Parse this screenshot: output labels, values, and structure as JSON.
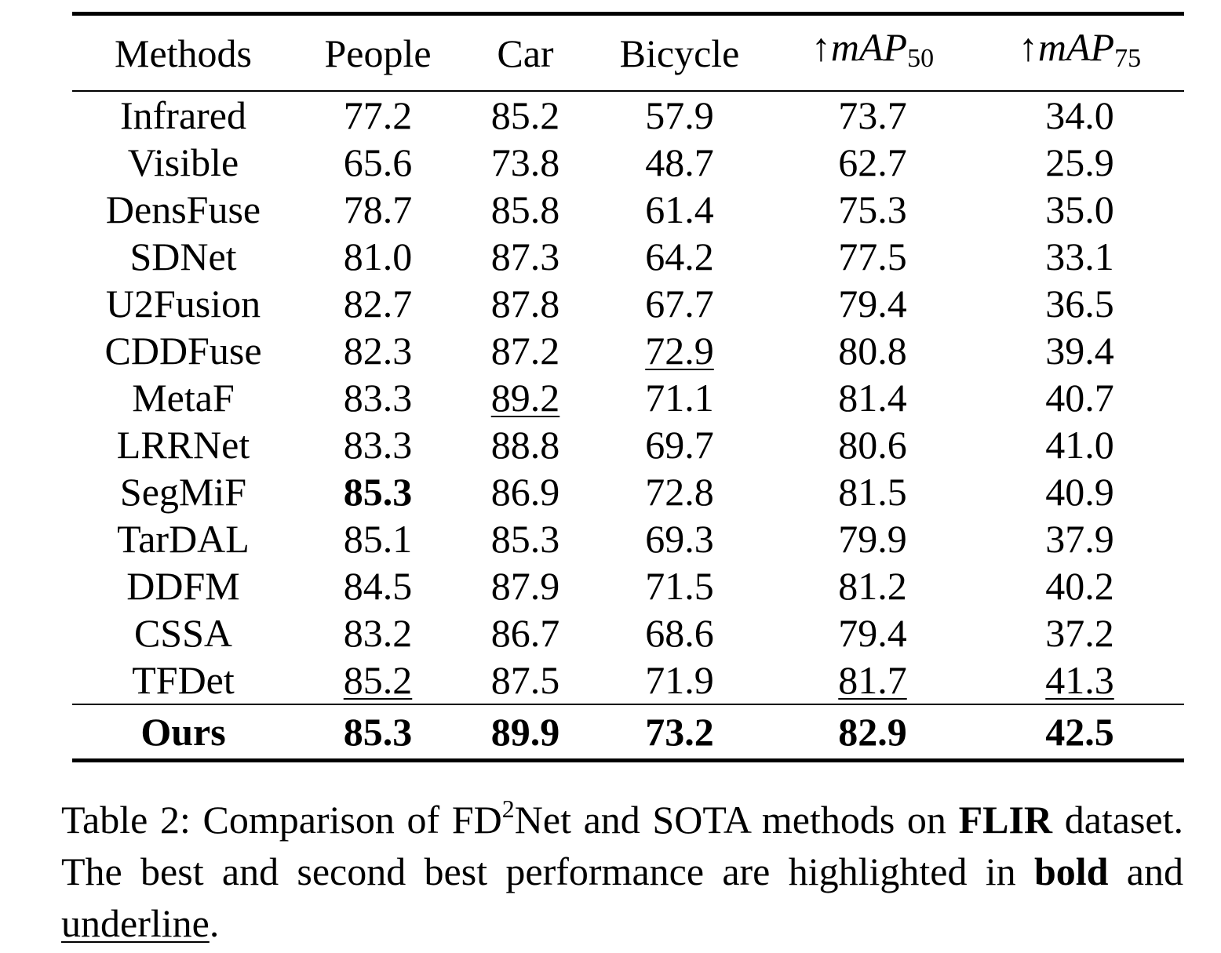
{
  "table": {
    "headers": {
      "methods": "Methods",
      "people": "People",
      "car": "Car",
      "bicycle": "Bicycle",
      "map50": {
        "arrow": "↑",
        "main": "mAP",
        "sub": "50"
      },
      "map75": {
        "arrow": "↑",
        "main": "mAP",
        "sub": "75"
      }
    },
    "rows": [
      {
        "method": "Infrared",
        "people": "77.2",
        "car": "85.2",
        "bicycle": "57.9",
        "map50": "73.7",
        "map75": "34.0"
      },
      {
        "method": "Visible",
        "people": "65.6",
        "car": "73.8",
        "bicycle": "48.7",
        "map50": "62.7",
        "map75": "25.9"
      },
      {
        "method": "DensFuse",
        "people": "78.7",
        "car": "85.8",
        "bicycle": "61.4",
        "map50": "75.3",
        "map75": "35.0"
      },
      {
        "method": "SDNet",
        "people": "81.0",
        "car": "87.3",
        "bicycle": "64.2",
        "map50": "77.5",
        "map75": "33.1"
      },
      {
        "method": "U2Fusion",
        "people": "82.7",
        "car": "87.8",
        "bicycle": "67.7",
        "map50": "79.4",
        "map75": "36.5"
      },
      {
        "method": "CDDFuse",
        "people": "82.3",
        "car": "87.2",
        "bicycle": "72.9",
        "map50": "80.8",
        "map75": "39.4"
      },
      {
        "method": "MetaF",
        "people": "83.3",
        "car": "89.2",
        "bicycle": "71.1",
        "map50": "81.4",
        "map75": "40.7"
      },
      {
        "method": "LRRNet",
        "people": "83.3",
        "car": "88.8",
        "bicycle": "69.7",
        "map50": "80.6",
        "map75": "41.0"
      },
      {
        "method": "SegMiF",
        "people": "85.3",
        "car": "86.9",
        "bicycle": "72.8",
        "map50": "81.5",
        "map75": "40.9"
      },
      {
        "method": "TarDAL",
        "people": "85.1",
        "car": "85.3",
        "bicycle": "69.3",
        "map50": "79.9",
        "map75": "37.9"
      },
      {
        "method": "DDFM",
        "people": "84.5",
        "car": "87.9",
        "bicycle": "71.5",
        "map50": "81.2",
        "map75": "40.2"
      },
      {
        "method": "CSSA",
        "people": "83.2",
        "car": "86.7",
        "bicycle": "68.6",
        "map50": "79.4",
        "map75": "37.2"
      },
      {
        "method": "TFDet",
        "people": "85.2",
        "car": "87.5",
        "bicycle": "71.9",
        "map50": "81.7",
        "map75": "41.3"
      }
    ],
    "ours": {
      "method": "Ours",
      "people": "85.3",
      "car": "89.9",
      "bicycle": "73.2",
      "map50": "82.9",
      "map75": "42.5"
    }
  },
  "caption": {
    "prefix": "Table 2: Comparison of FD",
    "sup": "2",
    "part2": "Net and SOTA methods on",
    "dataset": "FLIR",
    "part3": "dataset. The best and second best performance are highlighted in",
    "bold_word": "bold",
    "part4": "and",
    "underline_word": "underline",
    "end": "."
  }
}
